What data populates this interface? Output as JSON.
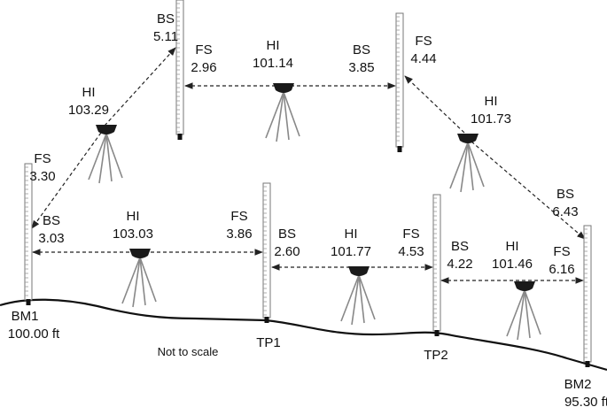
{
  "readings": [
    {
      "label": "BS",
      "value": "5.11"
    },
    {
      "label": "FS",
      "value": "2.96"
    },
    {
      "label": "HI",
      "value": "101.14"
    },
    {
      "label": "BS",
      "value": "3.85"
    },
    {
      "label": "FS",
      "value": "4.44"
    },
    {
      "label": "HI",
      "value": "103.29"
    },
    {
      "label": "HI",
      "value": "101.73"
    },
    {
      "label": "FS",
      "value": "3.30"
    },
    {
      "label": "BS",
      "value": "3.03"
    },
    {
      "label": "HI",
      "value": "103.03"
    },
    {
      "label": "FS",
      "value": "3.86"
    },
    {
      "label": "BS",
      "value": "2.60"
    },
    {
      "label": "HI",
      "value": "101.77"
    },
    {
      "label": "FS",
      "value": "4.53"
    },
    {
      "label": "BS",
      "value": "6.43"
    },
    {
      "label": "BS",
      "value": "4.22"
    },
    {
      "label": "HI",
      "value": "101.46"
    },
    {
      "label": "FS",
      "value": "6.16"
    }
  ],
  "stations": [
    {
      "name": "BM1",
      "elevation": "100.00 ft"
    },
    {
      "name": "TP1"
    },
    {
      "name": "TP2"
    },
    {
      "name": "BM2",
      "elevation": "95.30 ft"
    }
  ],
  "note": "Not to scale"
}
